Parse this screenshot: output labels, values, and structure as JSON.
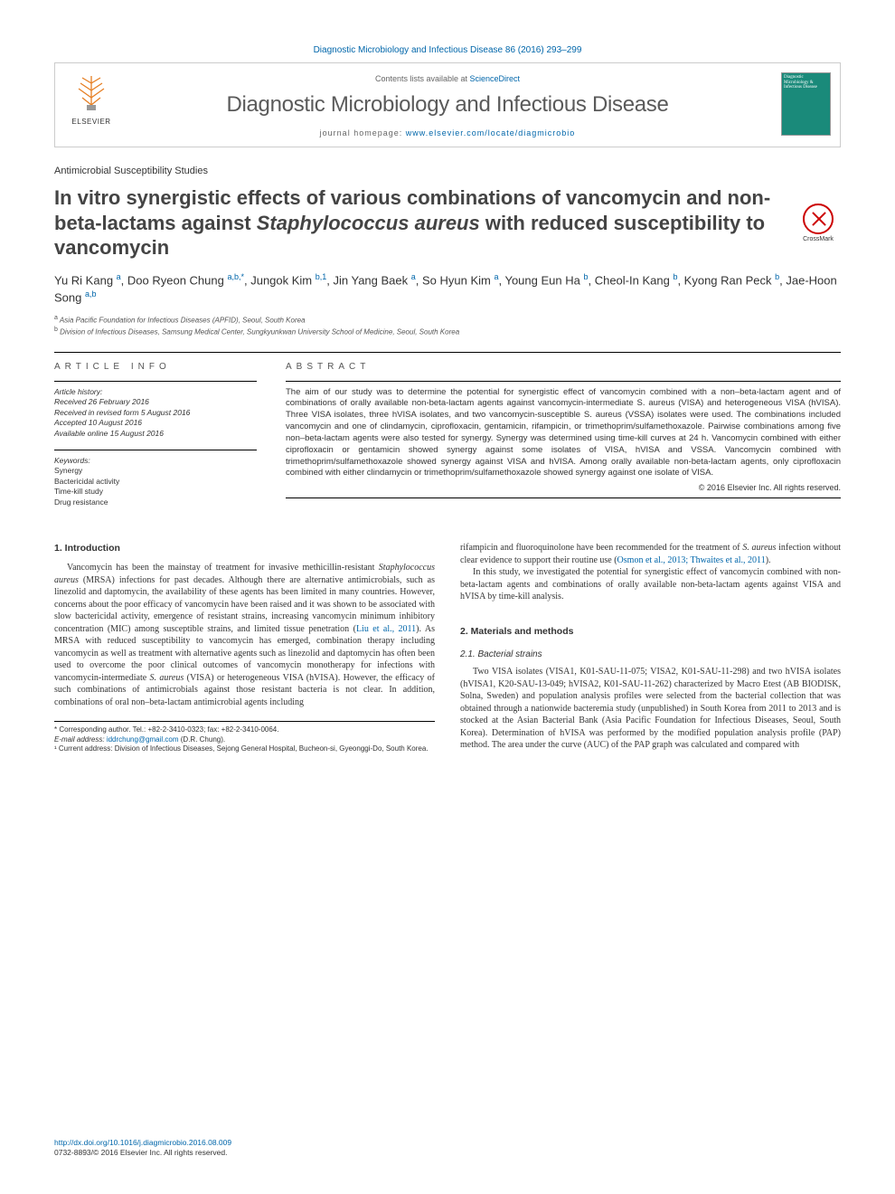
{
  "top_link": "Diagnostic Microbiology and Infectious Disease 86 (2016) 293–299",
  "header": {
    "contents_prefix": "Contents lists available at ",
    "contents_link": "ScienceDirect",
    "journal_name": "Diagnostic Microbiology and Infectious Disease",
    "homepage_prefix": "journal homepage: ",
    "homepage_link": "www.elsevier.com/locate/diagmicrobio",
    "elsevier_label": "ELSEVIER",
    "cover_text": "Diagnostic Microbiology & Infectious Disease"
  },
  "section_label": "Antimicrobial Susceptibility Studies",
  "title_parts": {
    "pre": "In vitro synergistic effects of various combinations of vancomycin and non-beta-lactams against ",
    "italic": "Staphylococcus aureus",
    "post": " with reduced susceptibility to vancomycin"
  },
  "crossmark_label": "CrossMark",
  "authors_html": "Yu Ri Kang <sup>a</sup>, Doo Ryeon Chung <sup>a,b,*</sup>, Jungok Kim <sup>b,1</sup>, Jin Yang Baek <sup>a</sup>, So Hyun Kim <sup>a</sup>, Young Eun Ha <sup>b</sup>, Cheol-In Kang <sup>b</sup>, Kyong Ran Peck <sup>b</sup>, Jae-Hoon Song <sup>a,b</sup>",
  "affiliations": [
    {
      "sup": "a",
      "text": "Asia Pacific Foundation for Infectious Diseases (APFID), Seoul, South Korea"
    },
    {
      "sup": "b",
      "text": "Division of Infectious Diseases, Samsung Medical Center, Sungkyunkwan University School of Medicine, Seoul, South Korea"
    }
  ],
  "info_heading": "article info",
  "abstract_heading": "abstract",
  "history": {
    "label": "Article history:",
    "received": "Received 26 February 2016",
    "revised": "Received in revised form 5 August 2016",
    "accepted": "Accepted 10 August 2016",
    "online": "Available online 15 August 2016"
  },
  "keywords": {
    "label": "Keywords:",
    "items": [
      "Synergy",
      "Bactericidal activity",
      "Time-kill study",
      "Drug resistance"
    ]
  },
  "abstract_text": "The aim of our study was to determine the potential for synergistic effect of vancomycin combined with a non–beta-lactam agent and of combinations of orally available non-beta-lactam agents against vancomycin-intermediate S. aureus (VISA) and heterogeneous VISA (hVISA). Three VISA isolates, three hVISA isolates, and two vancomycin-susceptible S. aureus (VSSA) isolates were used. The combinations included vancomycin and one of clindamycin, ciprofloxacin, gentamicin, rifampicin, or trimethoprim/sulfamethoxazole. Pairwise combinations among five non–beta-lactam agents were also tested for synergy. Synergy was determined using time-kill curves at 24 h. Vancomycin combined with either ciprofloxacin or gentamicin showed synergy against some isolates of VISA, hVISA and VSSA. Vancomycin combined with trimethoprim/sulfamethoxazole showed synergy against VISA and hVISA. Among orally available non-beta-lactam agents, only ciprofloxacin combined with either clindamycin or trimethoprim/sulfamethoxazole showed synergy against one isolate of VISA.",
  "copyright": "© 2016 Elsevier Inc. All rights reserved.",
  "intro": {
    "heading": "1. Introduction",
    "p1_pre": "Vancomycin has been the mainstay of treatment for invasive methicillin-resistant ",
    "p1_it1": "Staphylococcus aureus",
    "p1_mid": " (MRSA) infections for past decades. Although there are alternative antimicrobials, such as linezolid and daptomycin, the availability of these agents has been limited in many countries. However, concerns about the poor efficacy of vancomycin have been raised and it was shown to be associated with slow bactericidal activity, emergence of resistant strains, increasing vancomycin minimum inhibitory concentration (MIC) among susceptible strains, and limited tissue penetration (",
    "p1_cite1": "Liu et al., 2011",
    "p1_mid2": "). As MRSA with reduced susceptibility to vancomycin has emerged, combination therapy including vancomycin as well as treatment with alternative agents such as linezolid and daptomycin has often been used to overcome the poor clinical outcomes of vancomycin monotherapy for infections with vancomycin-intermediate ",
    "p1_it2": "S. aureus",
    "p1_post": " (VISA) or heterogeneous VISA (hVISA). However, the efficacy of such combinations of antimicrobials against those resistant bacteria is not clear. In addition, combinations of oral non–beta-lactam antimicrobial agents including"
  },
  "col2": {
    "p1_pre": "rifampicin and fluoroquinolone have been recommended for the treatment of ",
    "p1_it": "S. aureus",
    "p1_mid": " infection without clear evidence to support their routine use (",
    "p1_cite": "Osmon et al., 2013; Thwaites et al., 2011",
    "p1_post": ").",
    "p2": "In this study, we investigated the potential for synergistic effect of vancomycin combined with non-beta-lactam agents and combinations of orally available non-beta-lactam agents against VISA and hVISA by time-kill analysis.",
    "mm_heading": "2. Materials and methods",
    "strains_heading": "2.1. Bacterial strains",
    "strains_p": "Two VISA isolates (VISA1, K01-SAU-11-075; VISA2, K01-SAU-11-298) and two hVISA isolates (hVISA1, K20-SAU-13-049; hVISA2, K01-SAU-11-262) characterized by Macro Etest (AB BIODISK, Solna, Sweden) and population analysis profiles were selected from the bacterial collection that was obtained through a nationwide bacteremia study (unpublished) in South Korea from 2011 to 2013 and is stocked at the Asian Bacterial Bank (Asia Pacific Foundation for Infectious Diseases, Seoul, South Korea). Determination of hVISA was performed by the modified population analysis profile (PAP) method. The area under the curve (AUC) of the PAP graph was calculated and compared with"
  },
  "footnotes": {
    "corr": "* Corresponding author. Tel.: +82-2-3410-0323; fax: +82-2-3410-0064.",
    "email_label": "E-mail address:",
    "email": "iddrchung@gmail.com",
    "email_who": "(D.R. Chung).",
    "fn1": "¹ Current address: Division of Infectious Diseases, Sejong General Hospital, Bucheon-si, Gyeonggi-Do, South Korea."
  },
  "footer": {
    "doi": "http://dx.doi.org/10.1016/j.diagmicrobio.2016.08.009",
    "issn_copy": "0732-8893/© 2016 Elsevier Inc. All rights reserved."
  },
  "colors": {
    "link": "#0066aa",
    "text": "#333333",
    "cover_bg": "#1a8a7a",
    "elsevier_orange": "#e67e22",
    "rule": "#000000"
  },
  "fonts": {
    "body_size_pt": 10,
    "title_size_pt": 22,
    "journal_size_pt": 24,
    "abstract_size_pt": 9.5,
    "small_size_pt": 8.5
  }
}
